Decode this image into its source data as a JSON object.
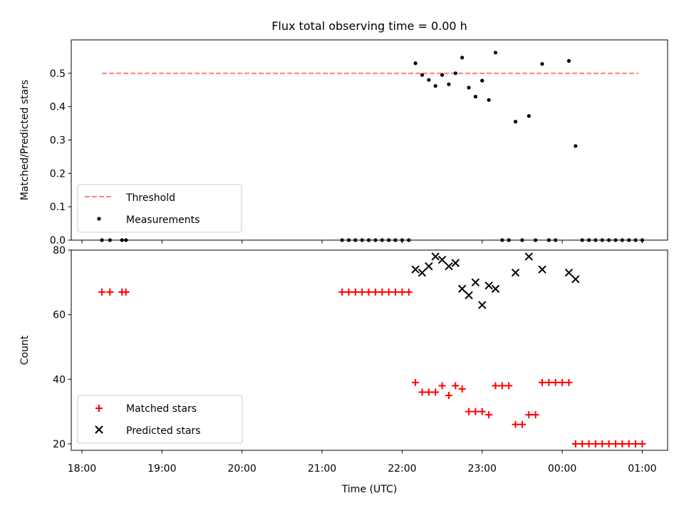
{
  "figure": {
    "title": "Flux total observing time = 0.00 h"
  },
  "colors": {
    "threshold": "#ff7f7f",
    "measurement": "#000000",
    "matched": "#ff0000",
    "predicted": "#000000"
  },
  "chart_data": [
    {
      "type": "scatter",
      "title": "Flux total observing time = 0.00 h",
      "xlabel": "",
      "ylabel": "Matched/Predicted stars",
      "x_ticks": [
        "18:00",
        "19:00",
        "20:00",
        "21:00",
        "22:00",
        "23:00",
        "00:00",
        "01:00"
      ],
      "x_tick_labels_visible": false,
      "xlim": [
        "17:52",
        "01:19"
      ],
      "ylim": [
        0,
        0.6
      ],
      "y_ticks": [
        "0.0",
        "0.1",
        "0.2",
        "0.3",
        "0.4",
        "0.5"
      ],
      "legend": {
        "position": "lower-left",
        "entries": [
          "Threshold",
          "Measurements"
        ]
      },
      "threshold": {
        "name": "Threshold",
        "value": 0.5,
        "x_start": "18:15",
        "x_end": "00:57"
      },
      "series": [
        {
          "name": "Measurements",
          "x": [
            "18:15",
            "18:21",
            "18:30",
            "18:33",
            "21:15",
            "21:20",
            "21:25",
            "21:30",
            "21:35",
            "21:40",
            "21:45",
            "21:50",
            "21:55",
            "22:00",
            "22:05",
            "22:10",
            "22:15",
            "22:20",
            "22:25",
            "22:30",
            "22:35",
            "22:40",
            "22:45",
            "22:50",
            "22:55",
            "23:00",
            "23:05",
            "23:10",
            "23:15",
            "23:20",
            "23:25",
            "23:30",
            "23:35",
            "23:40",
            "23:45",
            "23:50",
            "23:55",
            "00:05",
            "00:10",
            "00:15",
            "00:20",
            "00:25",
            "00:30",
            "00:35",
            "00:40",
            "00:45",
            "00:50",
            "00:55",
            "01:00"
          ],
          "y": [
            0,
            0,
            0,
            0,
            0,
            0,
            0,
            0,
            0,
            0,
            0,
            0,
            0,
            0,
            0,
            0.53,
            0.495,
            0.48,
            0.462,
            0.495,
            0.467,
            0.5,
            0.547,
            0.457,
            0.43,
            0.478,
            0.42,
            0.562,
            0,
            0,
            0.355,
            0,
            0.372,
            0,
            0.528,
            0,
            0,
            0.537,
            0.282,
            0,
            0,
            0,
            0,
            0,
            0,
            0,
            0,
            0,
            0
          ]
        }
      ]
    },
    {
      "type": "scatter",
      "xlabel": "Time (UTC)",
      "ylabel": "Count",
      "x_ticks": [
        "18:00",
        "19:00",
        "20:00",
        "21:00",
        "22:00",
        "23:00",
        "00:00",
        "01:00"
      ],
      "xlim": [
        "17:52",
        "01:19"
      ],
      "ylim": [
        18,
        80
      ],
      "y_ticks": [
        "20",
        "40",
        "60",
        "80"
      ],
      "legend": {
        "position": "lower-left",
        "entries": [
          "Matched stars",
          "Predicted stars"
        ]
      },
      "series": [
        {
          "name": "Matched stars",
          "x": [
            "18:15",
            "18:21",
            "18:30",
            "18:33",
            "21:15",
            "21:20",
            "21:25",
            "21:30",
            "21:35",
            "21:40",
            "21:45",
            "21:50",
            "21:55",
            "22:00",
            "22:05",
            "22:10",
            "22:15",
            "22:20",
            "22:25",
            "22:30",
            "22:35",
            "22:40",
            "22:45",
            "22:50",
            "22:55",
            "23:00",
            "23:05",
            "23:10",
            "23:15",
            "23:20",
            "23:25",
            "23:30",
            "23:35",
            "23:40",
            "23:45",
            "23:50",
            "23:55",
            "00:00",
            "00:05",
            "00:10",
            "00:15",
            "00:20",
            "00:25",
            "00:30",
            "00:35",
            "00:40",
            "00:45",
            "00:50",
            "00:55",
            "01:00"
          ],
          "y": [
            67,
            67,
            67,
            67,
            67,
            67,
            67,
            67,
            67,
            67,
            67,
            67,
            67,
            67,
            67,
            39,
            36,
            36,
            36,
            38,
            35,
            38,
            37,
            30,
            30,
            30,
            29,
            38,
            38,
            38,
            26,
            26,
            29,
            29,
            39,
            39,
            39,
            39,
            39,
            20,
            20,
            20,
            20,
            20,
            20,
            20,
            20,
            20,
            20,
            20
          ]
        },
        {
          "name": "Predicted stars",
          "x": [
            "22:10",
            "22:15",
            "22:20",
            "22:25",
            "22:30",
            "22:35",
            "22:40",
            "22:45",
            "22:50",
            "22:55",
            "23:00",
            "23:05",
            "23:10",
            "23:25",
            "23:35",
            "23:45",
            "00:05",
            "00:10"
          ],
          "y": [
            74,
            73,
            75,
            78,
            77,
            75,
            76,
            68,
            66,
            70,
            63,
            69,
            68,
            73,
            78,
            74,
            73,
            71
          ]
        }
      ]
    }
  ]
}
